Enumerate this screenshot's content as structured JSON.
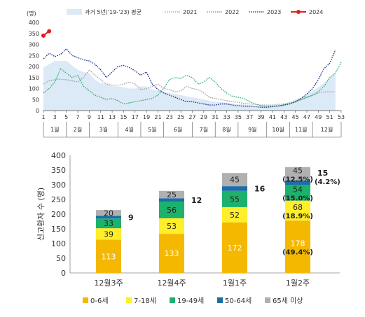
{
  "chart_data": [
    {
      "type": "area-line",
      "ylabel": "(명)",
      "ylim": [
        0,
        400
      ],
      "yticks": [
        0,
        50,
        100,
        150,
        200,
        250,
        300,
        350,
        400
      ],
      "xlim": [
        1,
        53
      ],
      "xticks": [
        1,
        3,
        5,
        7,
        9,
        11,
        13,
        15,
        17,
        19,
        21,
        23,
        25,
        27,
        29,
        31,
        33,
        35,
        37,
        39,
        41,
        43,
        45,
        47,
        49,
        51,
        53
      ],
      "months": [
        "1월",
        "2월",
        "3월",
        "4월",
        "5월",
        "6월",
        "7월",
        "8월",
        "9월",
        "10월",
        "11월",
        "12월"
      ],
      "month_bounds": [
        1,
        5,
        9,
        14,
        18,
        22,
        27,
        31,
        35,
        40,
        44,
        48,
        53
      ],
      "legend": [
        {
          "name": "과거 5년('19-'23) 평균",
          "color": "#dce9f6"
        },
        {
          "name": "2021",
          "color": "#a0a0a0"
        },
        {
          "name": "2022",
          "color": "#2fb06c"
        },
        {
          "name": "2023",
          "color": "#1f2f8e"
        },
        {
          "name": "2024",
          "color": "#e02020"
        }
      ],
      "series": [
        {
          "name": "과거 5년('19-'23) 평균",
          "kind": "area",
          "color": "#dce9f6",
          "x": [
            1,
            2,
            3,
            4,
            5,
            6,
            7,
            8,
            9,
            10,
            11,
            12,
            13,
            14,
            15,
            16,
            17,
            18,
            19,
            20,
            21,
            22,
            23,
            24,
            25,
            26,
            27,
            28,
            29,
            30,
            31,
            32,
            33,
            34,
            35,
            36,
            37,
            38,
            39,
            40,
            41,
            42,
            43,
            44,
            45,
            46,
            47,
            48,
            49,
            50,
            51,
            52
          ],
          "y": [
            195,
            210,
            225,
            225,
            225,
            205,
            185,
            175,
            170,
            140,
            125,
            120,
            110,
            110,
            105,
            100,
            100,
            110,
            110,
            95,
            90,
            85,
            80,
            75,
            70,
            65,
            60,
            55,
            50,
            45,
            40,
            38,
            35,
            32,
            30,
            28,
            25,
            22,
            20,
            20,
            22,
            25,
            30,
            38,
            50,
            60,
            75,
            90,
            105,
            125,
            150,
            170
          ]
        },
        {
          "name": "2021",
          "kind": "line",
          "color": "#a0a0a0",
          "x": [
            1,
            2,
            3,
            4,
            5,
            6,
            7,
            8,
            9,
            10,
            11,
            12,
            13,
            14,
            15,
            16,
            17,
            18,
            19,
            20,
            21,
            22,
            23,
            24,
            25,
            26,
            27,
            28,
            29,
            30,
            31,
            32,
            33,
            34,
            35,
            36,
            37,
            38,
            39,
            40,
            41,
            42,
            43,
            44,
            45,
            46,
            47,
            48,
            49,
            50,
            51,
            52
          ],
          "y": [
            120,
            135,
            140,
            142,
            140,
            135,
            130,
            150,
            185,
            160,
            140,
            120,
            115,
            115,
            120,
            130,
            120,
            95,
            100,
            110,
            120,
            100,
            95,
            85,
            90,
            110,
            100,
            95,
            80,
            60,
            55,
            50,
            45,
            40,
            38,
            32,
            30,
            28,
            25,
            25,
            25,
            28,
            30,
            35,
            40,
            50,
            60,
            70,
            80,
            85,
            85,
            85
          ]
        },
        {
          "name": "2022",
          "kind": "line",
          "color": "#2fb06c",
          "x": [
            1,
            2,
            3,
            4,
            5,
            6,
            7,
            8,
            9,
            10,
            11,
            12,
            13,
            14,
            15,
            16,
            17,
            18,
            19,
            20,
            21,
            22,
            23,
            24,
            25,
            26,
            27,
            28,
            29,
            30,
            31,
            32,
            33,
            34,
            35,
            36,
            37,
            38,
            39,
            40,
            41,
            42,
            43,
            44,
            45,
            46,
            47,
            48,
            49,
            50,
            51,
            52,
            53
          ],
          "y": [
            80,
            100,
            130,
            190,
            170,
            150,
            160,
            110,
            90,
            70,
            60,
            50,
            55,
            45,
            30,
            35,
            40,
            45,
            50,
            55,
            70,
            100,
            140,
            150,
            145,
            160,
            150,
            120,
            130,
            150,
            130,
            100,
            80,
            65,
            60,
            55,
            40,
            30,
            22,
            20,
            20,
            22,
            25,
            30,
            40,
            50,
            60,
            70,
            85,
            110,
            150,
            170,
            220
          ]
        },
        {
          "name": "2023",
          "kind": "line",
          "color": "#1f2f8e",
          "x": [
            1,
            2,
            3,
            4,
            5,
            6,
            7,
            8,
            9,
            10,
            11,
            12,
            13,
            14,
            15,
            16,
            17,
            18,
            19,
            20,
            21,
            22,
            23,
            24,
            25,
            26,
            27,
            28,
            29,
            30,
            31,
            32,
            33,
            34,
            35,
            36,
            37,
            38,
            39,
            40,
            41,
            42,
            43,
            44,
            45,
            46,
            47,
            48,
            49,
            50,
            51,
            52
          ],
          "y": [
            235,
            260,
            245,
            255,
            280,
            250,
            240,
            230,
            225,
            210,
            185,
            150,
            175,
            200,
            205,
            195,
            180,
            160,
            175,
            120,
            95,
            80,
            70,
            60,
            50,
            40,
            40,
            35,
            30,
            25,
            25,
            30,
            30,
            25,
            22,
            20,
            20,
            18,
            15,
            15,
            18,
            20,
            25,
            30,
            40,
            55,
            75,
            100,
            140,
            190,
            215,
            275
          ]
        },
        {
          "name": "2024",
          "kind": "line-marker",
          "color": "#e02020",
          "x": [
            1,
            2
          ],
          "y": [
            340,
            360
          ]
        }
      ]
    },
    {
      "type": "stacked-bar",
      "ylabel": "신고환자 수 (명)",
      "ylim": [
        0,
        400
      ],
      "yticks": [
        0,
        50,
        100,
        150,
        200,
        250,
        300,
        350,
        400
      ],
      "categories": [
        "12월3주",
        "12월4주",
        "1월1주",
        "1월2주"
      ],
      "series": [
        {
          "name": "0-6세",
          "color": "#f5b800",
          "values": [
            113,
            133,
            172,
            178
          ]
        },
        {
          "name": "7-18세",
          "color": "#ffee2a",
          "values": [
            39,
            53,
            52,
            68
          ]
        },
        {
          "name": "19-49세",
          "color": "#1db26b",
          "values": [
            33,
            56,
            55,
            54
          ]
        },
        {
          "name": "50-64세",
          "color": "#1b6fa6",
          "values": [
            9,
            12,
            16,
            15
          ]
        },
        {
          "name": "65세 이상",
          "color": "#b0b0b0",
          "values": [
            20,
            25,
            45,
            45
          ]
        }
      ],
      "annotations": {
        "outside": [
          "9",
          "12",
          "16",
          "15"
        ],
        "last_bar_pct": {
          "0-6세": "(49.4%)",
          "7-18세": "(18.9%)",
          "19-49세": "(15.0%)",
          "50-64세": "(4.2%)",
          "65세 이상": "(12.5%)"
        }
      }
    }
  ]
}
